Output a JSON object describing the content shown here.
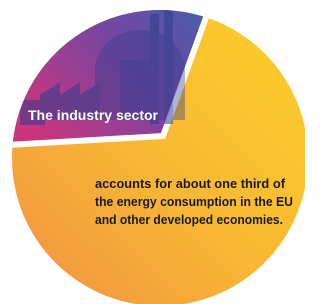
{
  "label": "The industry sector",
  "body": {
    "lines": [
      "accounts for about one third of",
      "the energy consumption in the EU",
      "and other developed economies."
    ]
  }
}
